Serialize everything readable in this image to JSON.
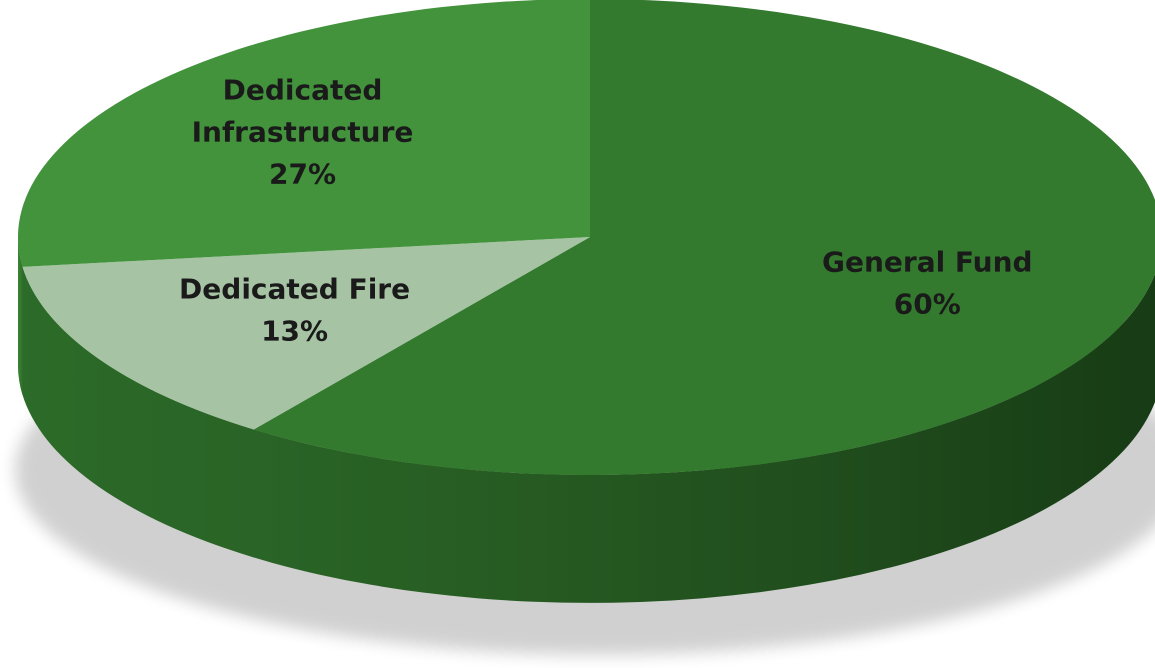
{
  "chart_data": {
    "type": "pie",
    "style": "3d",
    "title": "",
    "slices": [
      {
        "label": "General Fund",
        "value": 60,
        "percent_label": "60%",
        "color": "#337a2e"
      },
      {
        "label": "Dedicated Fire",
        "value": 13,
        "percent_label": "13%",
        "color": "#a6c4a4"
      },
      {
        "label": "Dedicated Infrastructure",
        "value": 27,
        "percent_label": "27%",
        "color": "#43933d"
      }
    ],
    "legend": "none"
  }
}
